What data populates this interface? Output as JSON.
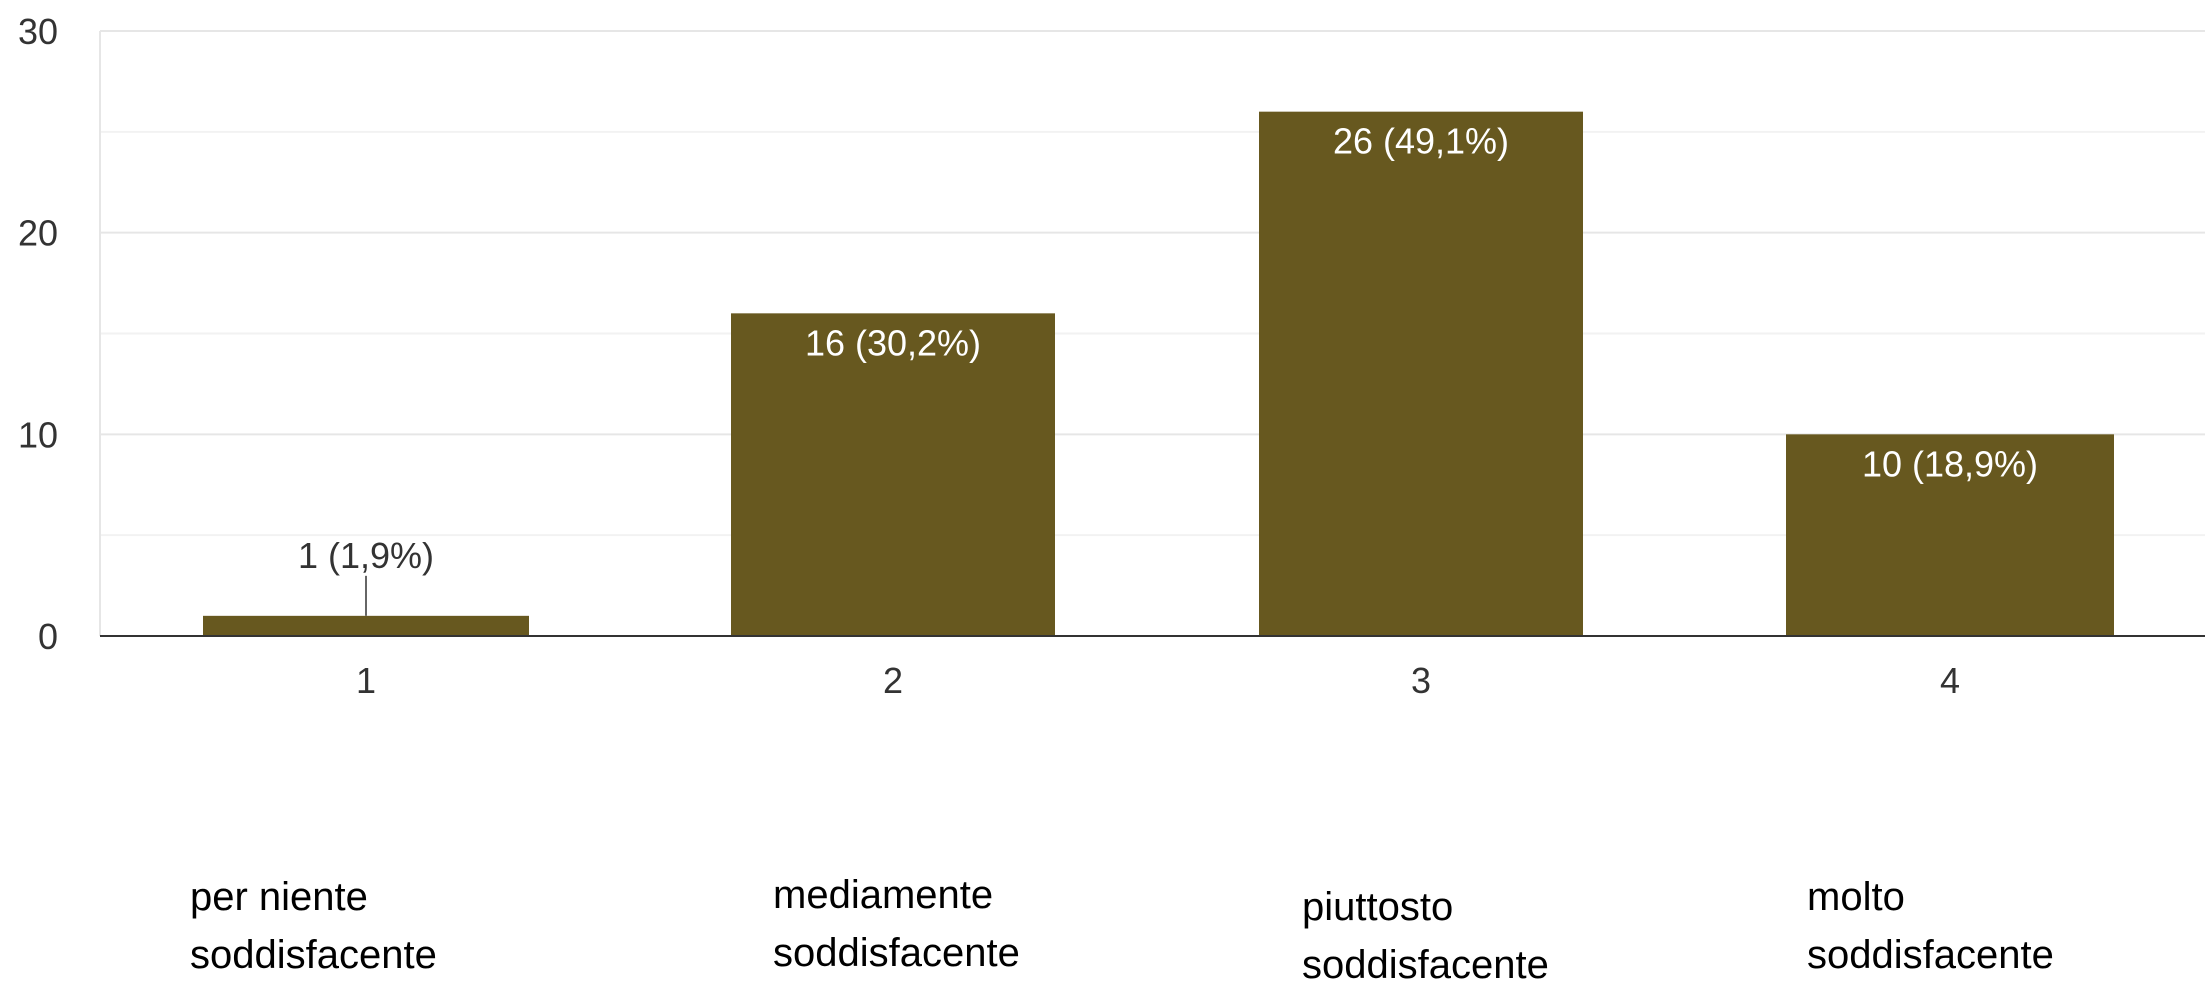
{
  "chart_data": {
    "type": "bar",
    "categories": [
      "1",
      "2",
      "3",
      "4"
    ],
    "values": [
      1,
      16,
      26,
      10
    ],
    "data_labels": [
      "1 (1,9%)",
      "16 (30,2%)",
      "26 (49,1%)",
      "10 (18,9%)"
    ],
    "yticks": [
      "0",
      "10",
      "20",
      "30"
    ],
    "ylim": [
      0,
      30
    ],
    "grid": true,
    "bar_color": "#67581f",
    "category_captions": [
      {
        "line1": "per niente",
        "line2": "soddisfacente"
      },
      {
        "line1": "mediamente",
        "line2": "soddisfacente"
      },
      {
        "line1": "piuttosto",
        "line2": "soddisfacente"
      },
      {
        "line1": "molto",
        "line2": "soddisfacente"
      }
    ]
  }
}
